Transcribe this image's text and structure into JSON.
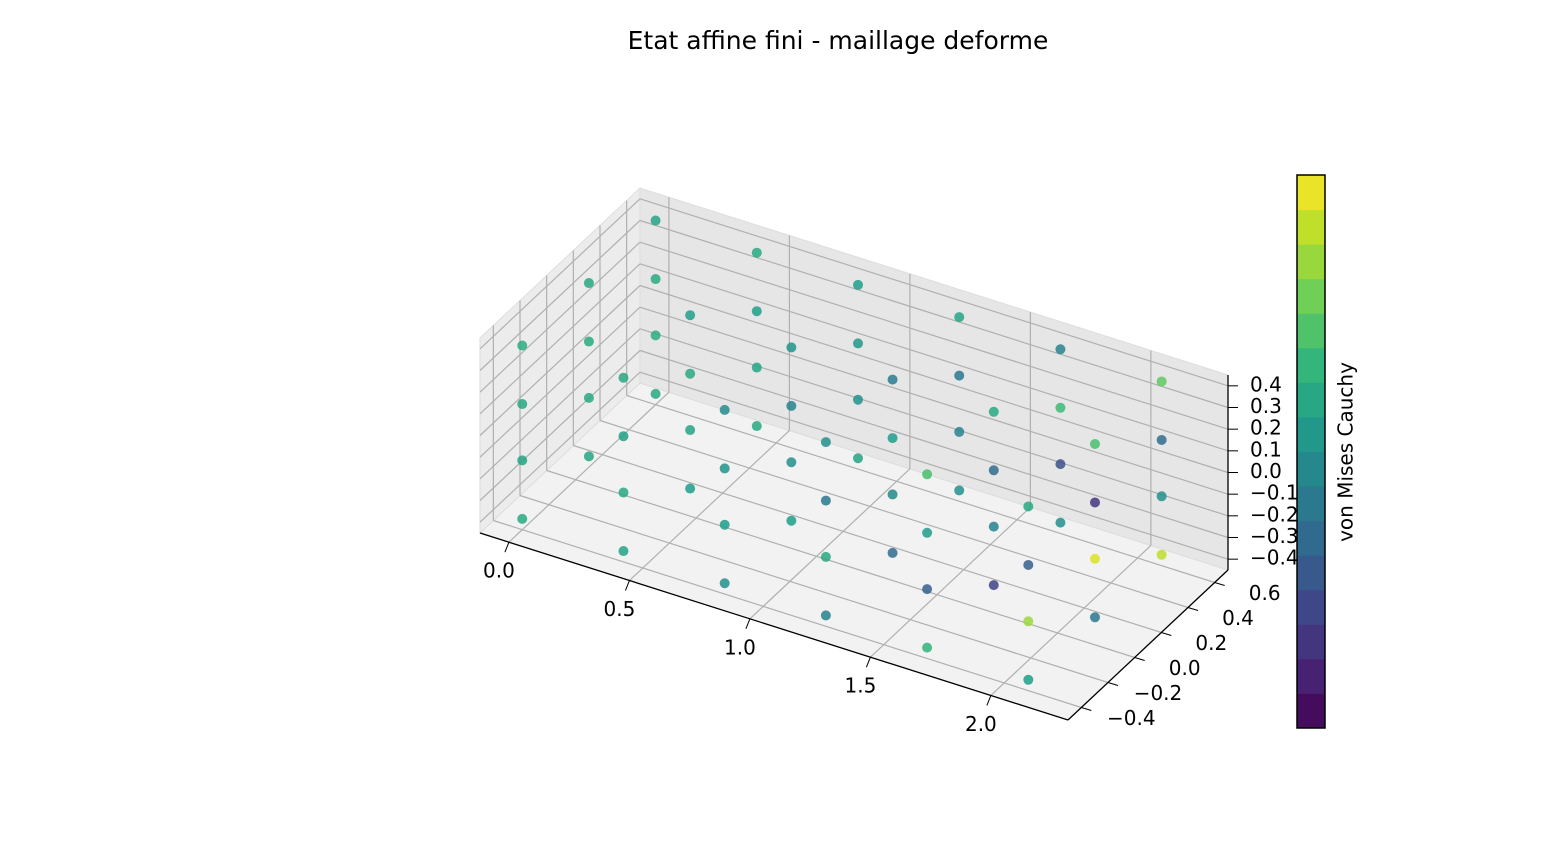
{
  "chart_data": {
    "type": "scatter3d",
    "title": "Etat affine fini - maillage deforme",
    "colorbar_label": "von Mises Cauchy",
    "x": [
      0,
      0,
      0,
      0,
      0,
      0,
      0,
      0,
      0,
      0,
      0,
      0,
      0.42,
      0.42,
      0.42,
      0.42,
      0.42,
      0.42,
      0.42,
      0.42,
      0.42,
      0.42,
      0.42,
      0.42,
      0.84,
      0.84,
      0.84,
      0.84,
      0.84,
      0.84,
      0.84,
      0.84,
      0.84,
      0.84,
      0.84,
      0.84,
      1.26,
      1.26,
      1.26,
      1.26,
      1.26,
      1.26,
      1.26,
      1.26,
      1.26,
      1.26,
      1.26,
      1.26,
      1.68,
      1.68,
      1.68,
      1.68,
      1.68,
      1.68,
      1.68,
      1.68,
      1.68,
      1.68,
      1.68,
      1.68,
      2.1,
      2.1,
      2.1,
      2.1,
      2.1,
      2.1,
      2.1,
      2.1,
      2.1,
      2.1,
      2.1,
      2.1
    ],
    "y": [
      -0.4,
      -0.4,
      -0.4,
      -0.4,
      0.1,
      0.1,
      0.1,
      0.1,
      0.6,
      0.6,
      0.6,
      0.6,
      -0.4,
      -0.4,
      -0.4,
      -0.4,
      0.1,
      0.1,
      0.1,
      0.1,
      0.6,
      0.6,
      0.6,
      0.6,
      -0.4,
      -0.4,
      -0.4,
      -0.4,
      0.1,
      0.1,
      0.1,
      0.1,
      0.6,
      0.6,
      0.6,
      0.6,
      -0.4,
      -0.4,
      -0.4,
      -0.4,
      0.1,
      0.1,
      0.1,
      0.1,
      0.6,
      0.6,
      0.6,
      0.6,
      -0.4,
      -0.4,
      -0.4,
      -0.4,
      0.1,
      0.1,
      0.1,
      0.1,
      0.6,
      0.6,
      0.6,
      0.6,
      -0.4,
      -0.4,
      -0.4,
      -0.4,
      0.1,
      0.1,
      0.1,
      0.1,
      0.6,
      0.6,
      0.6,
      0.6
    ],
    "z": [
      -0.4,
      -0.13,
      0.13,
      0.4,
      -0.4,
      -0.13,
      0.13,
      0.4,
      -0.4,
      -0.13,
      0.13,
      0.4,
      -0.4,
      -0.13,
      0.13,
      0.4,
      -0.4,
      -0.13,
      0.13,
      0.4,
      -0.4,
      -0.13,
      0.13,
      0.4,
      -0.4,
      -0.13,
      0.13,
      0.4,
      -0.4,
      -0.13,
      0.13,
      0.4,
      -0.4,
      -0.13,
      0.13,
      0.4,
      -0.4,
      -0.13,
      0.13,
      0.4,
      -0.4,
      -0.13,
      0.13,
      0.4,
      -0.4,
      -0.13,
      0.13,
      0.4,
      -0.4,
      -0.13,
      0.13,
      0.4,
      -0.4,
      -0.13,
      0.13,
      0.4,
      -0.4,
      -0.13,
      0.13,
      0.4,
      -0.4,
      -0.13,
      0.13,
      0.4,
      -0.4,
      -0.13,
      0.13,
      0.4,
      -0.4,
      -0.13,
      0.13,
      0.4
    ],
    "c": [
      0.6,
      0.58,
      0.6,
      0.62,
      0.59,
      0.6,
      0.61,
      0.6,
      0.6,
      0.62,
      0.6,
      0.58,
      0.58,
      0.6,
      0.57,
      0.6,
      0.55,
      0.58,
      0.6,
      0.56,
      0.6,
      0.58,
      0.55,
      0.6,
      0.5,
      0.55,
      0.52,
      0.48,
      0.55,
      0.5,
      0.45,
      0.52,
      0.58,
      0.5,
      0.53,
      0.55,
      0.45,
      0.6,
      0.4,
      0.5,
      0.35,
      0.48,
      0.55,
      0.42,
      0.5,
      0.45,
      0.4,
      0.58,
      0.65,
      0.3,
      0.55,
      0.7,
      0.2,
      0.45,
      0.35,
      0.6,
      0.5,
      0.25,
      0.68,
      0.45,
      0.55,
      0.85,
      0.3,
      0.6,
      0.4,
      0.95,
      0.15,
      0.7,
      0.9,
      0.5,
      0.35,
      0.75
    ],
    "clim": [
      0,
      1
    ],
    "xlim": [
      -0.12,
      2.32
    ],
    "ylim": [
      -0.5,
      0.7
    ],
    "zlim": [
      -0.45,
      0.45
    ],
    "xticks": [
      {
        "value": 0,
        "label": "0.0"
      },
      0.5,
      {
        "value": 1,
        "label": "1.0"
      },
      1.5,
      {
        "value": 2,
        "label": "2.0"
      }
    ],
    "yticks": [
      {
        "value": -0.4,
        "label": "−0.4"
      },
      {
        "value": -0.2,
        "label": "−0.2"
      },
      {
        "value": 0,
        "label": "0.0"
      },
      0.2,
      0.4,
      0.6
    ],
    "zticks": [
      {
        "value": -0.4,
        "label": "−0.4"
      },
      {
        "value": -0.3,
        "label": "−0.3"
      },
      {
        "value": -0.2,
        "label": "−0.2"
      },
      {
        "value": -0.1,
        "label": "−0.1"
      },
      {
        "value": 0,
        "label": "0.0"
      },
      0.1,
      0.2,
      0.3,
      0.4
    ],
    "grid": true
  }
}
